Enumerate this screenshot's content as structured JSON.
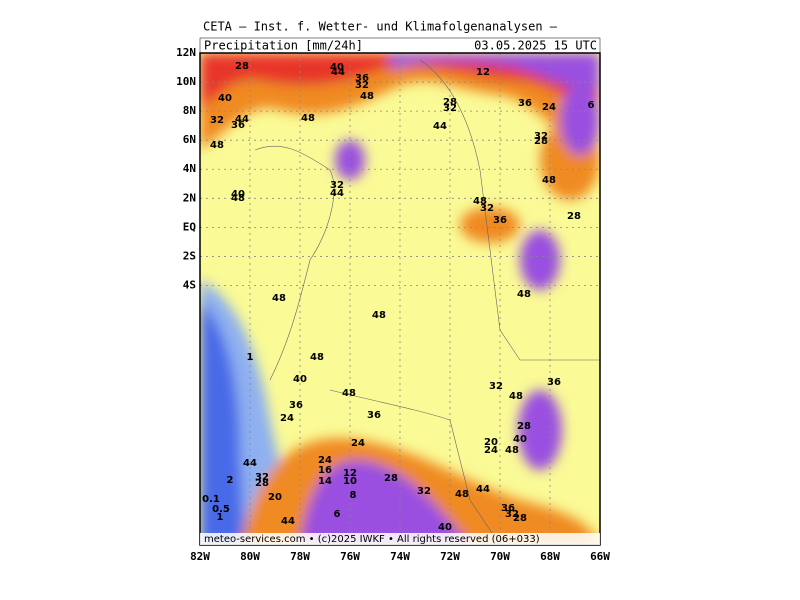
{
  "header": {
    "title": "CETA — Inst. f. Wetter- und Klimafolgenanalysen —",
    "variable": "Precipitation [mm/24h]",
    "valid_time": "03.05.2025 15 UTC"
  },
  "lat_labels": [
    "12N",
    "10N",
    "8N",
    "6N",
    "4N",
    "2N",
    "EQ",
    "2S",
    "4S"
  ],
  "lon_labels": [
    "82W",
    "80W",
    "78W",
    "76W",
    "74W",
    "72W",
    "70W",
    "68W",
    "66W"
  ],
  "footer": "meteo-services.com • (c)2025 IWKF • All rights reserved (06+033)",
  "contour_labels": [
    28,
    40,
    32,
    36,
    44,
    48,
    40,
    44,
    32,
    36,
    48,
    48,
    12,
    28,
    32,
    44,
    36,
    24,
    6,
    32,
    28,
    48,
    40,
    48,
    32,
    44,
    48,
    32,
    36,
    28,
    48,
    48,
    48,
    48,
    40,
    36,
    24,
    48,
    36,
    32,
    48,
    36,
    28,
    40,
    20,
    24,
    48,
    24,
    44,
    32,
    28,
    24,
    16,
    14,
    12,
    10,
    28,
    32,
    48,
    44,
    8,
    20,
    36,
    32,
    28,
    6,
    44,
    40,
    0.1,
    0.5,
    1,
    1,
    2
  ]
}
